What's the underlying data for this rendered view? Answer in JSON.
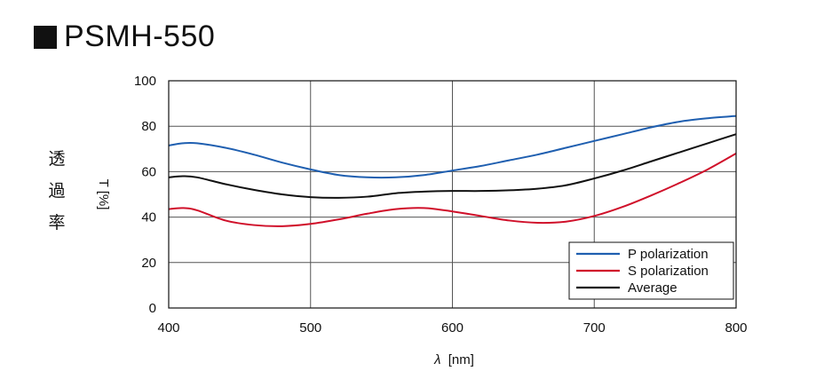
{
  "title": "PSMH-550",
  "side_label": [
    "透",
    "過",
    "率"
  ],
  "chart_data": {
    "type": "line",
    "xlabel_symbol": "λ",
    "xlabel_unit": "[nm]",
    "ylabel": "T [%]",
    "xlim": [
      400,
      800
    ],
    "ylim": [
      0,
      100
    ],
    "x_ticks": [
      400,
      500,
      600,
      700,
      800
    ],
    "y_ticks": [
      0,
      20,
      40,
      60,
      80,
      100
    ],
    "grid": true,
    "legend_position": "bottom-right",
    "x": [
      400,
      410,
      420,
      440,
      460,
      480,
      500,
      520,
      540,
      560,
      580,
      600,
      620,
      640,
      660,
      680,
      700,
      720,
      740,
      760,
      780,
      800
    ],
    "series": [
      {
        "name": "P polarization",
        "color": "#1f5fb0",
        "values": [
          71.5,
          72.5,
          72.5,
          70.5,
          67.5,
          64.0,
          61.0,
          58.5,
          57.5,
          57.5,
          58.5,
          60.5,
          62.5,
          65.0,
          67.5,
          70.5,
          73.5,
          76.5,
          79.5,
          82.0,
          83.5,
          84.5
        ]
      },
      {
        "name": "S polarization",
        "color": "#d0102a",
        "values": [
          43.5,
          44.0,
          43.0,
          38.5,
          36.5,
          36.0,
          37.0,
          39.0,
          41.5,
          43.5,
          44.0,
          42.5,
          40.5,
          38.5,
          37.5,
          38.0,
          40.5,
          44.5,
          49.5,
          55.0,
          61.0,
          68.0
        ]
      },
      {
        "name": "Average",
        "color": "#111111",
        "values": [
          57.5,
          58.0,
          57.5,
          54.5,
          52.0,
          50.0,
          48.8,
          48.5,
          49.0,
          50.5,
          51.2,
          51.5,
          51.5,
          51.8,
          52.5,
          54.0,
          57.0,
          60.5,
          64.5,
          68.5,
          72.5,
          76.5
        ]
      }
    ]
  }
}
